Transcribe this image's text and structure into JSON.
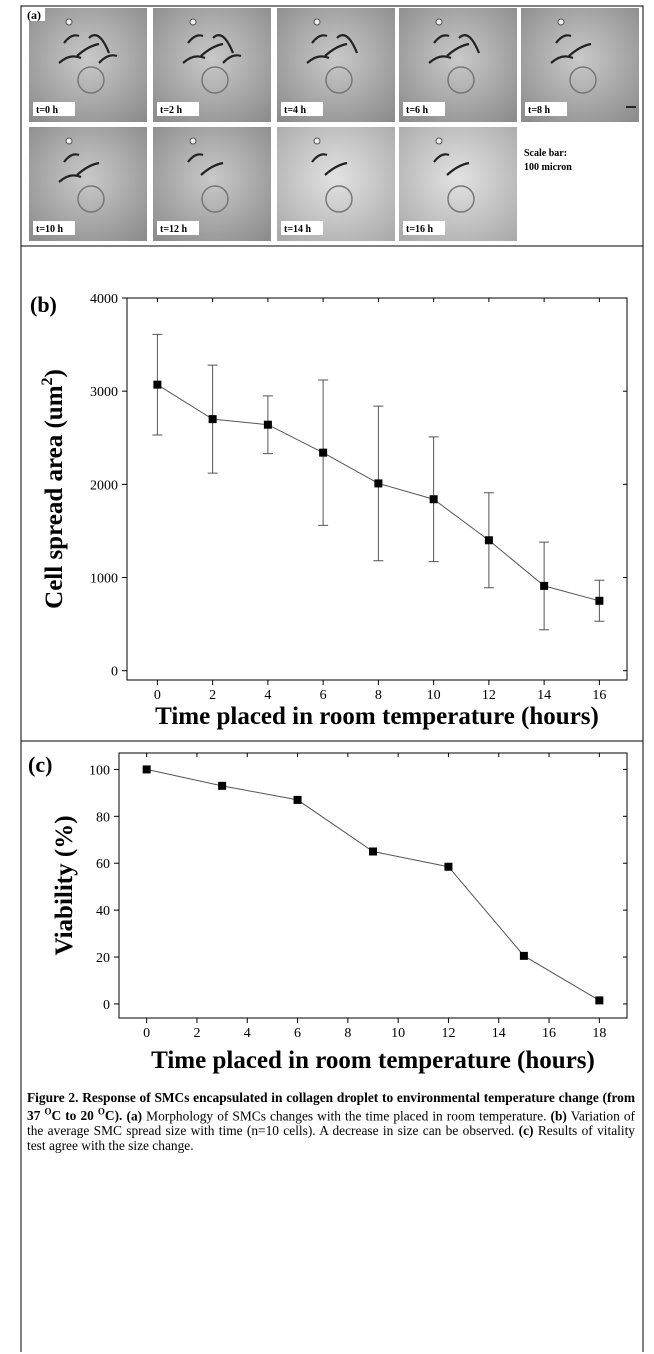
{
  "panel_a": {
    "label": "(a)",
    "frames": [
      "t=0 h",
      "t=2 h",
      "t=4 h",
      "t=6 h",
      "t=8 h",
      "t=10 h",
      "t=12 h",
      "t=14 h",
      "t=16 h"
    ],
    "scale_bar": [
      "Scale bar:",
      "100 micron"
    ]
  },
  "chart_data": [
    {
      "type": "line",
      "panel_label": "(b)",
      "xlabel": "Time placed in room temperature (hours)",
      "ylabel": [
        "Cell spread area (um",
        "2",
        ")"
      ],
      "x": [
        0,
        2,
        4,
        6,
        8,
        10,
        12,
        14,
        16
      ],
      "values": [
        3070,
        2700,
        2640,
        2340,
        2010,
        1840,
        1400,
        910,
        750
      ],
      "errors": [
        540,
        580,
        310,
        780,
        830,
        670,
        510,
        470,
        220
      ],
      "xlim": [
        -1.1,
        17
      ],
      "xticks": [
        0,
        2,
        4,
        6,
        8,
        10,
        12,
        14,
        16
      ],
      "ylim": [
        -100,
        4000
      ],
      "yticks": [
        0,
        1000,
        2000,
        3000,
        4000
      ],
      "color": "#000000"
    },
    {
      "type": "line",
      "panel_label": "(c)",
      "xlabel": "Time placed in room temperature (hours)",
      "ylabel": [
        "Viability (%)"
      ],
      "x": [
        0,
        3,
        6,
        9,
        12,
        15,
        18
      ],
      "values": [
        100,
        93,
        87,
        65,
        58.5,
        20.5,
        1.5
      ],
      "xlim": [
        -1.1,
        19.1
      ],
      "xticks": [
        0,
        2,
        4,
        6,
        8,
        10,
        12,
        14,
        16,
        18
      ],
      "ylim": [
        -6,
        107
      ],
      "yticks": [
        0,
        20,
        40,
        60,
        80,
        100
      ],
      "color": "#000000"
    }
  ],
  "caption": {
    "title_parts": [
      "Figure 2. Response of SMCs encapsulated in collagen droplet to environmental temperature change (from 37 ",
      "O",
      "C to 20 ",
      "O",
      "C)."
    ],
    "items": [
      {
        "label": "(a)",
        "text": " Morphology of SMCs changes with the time placed in room temperature. "
      },
      {
        "label": "(b)",
        "text": " Variation of the average SMC spread size with time (n=10 cells). A decrease in size can be observed. "
      },
      {
        "label": "(c)",
        "text": " Results of vitality test agree with the size change."
      }
    ]
  }
}
